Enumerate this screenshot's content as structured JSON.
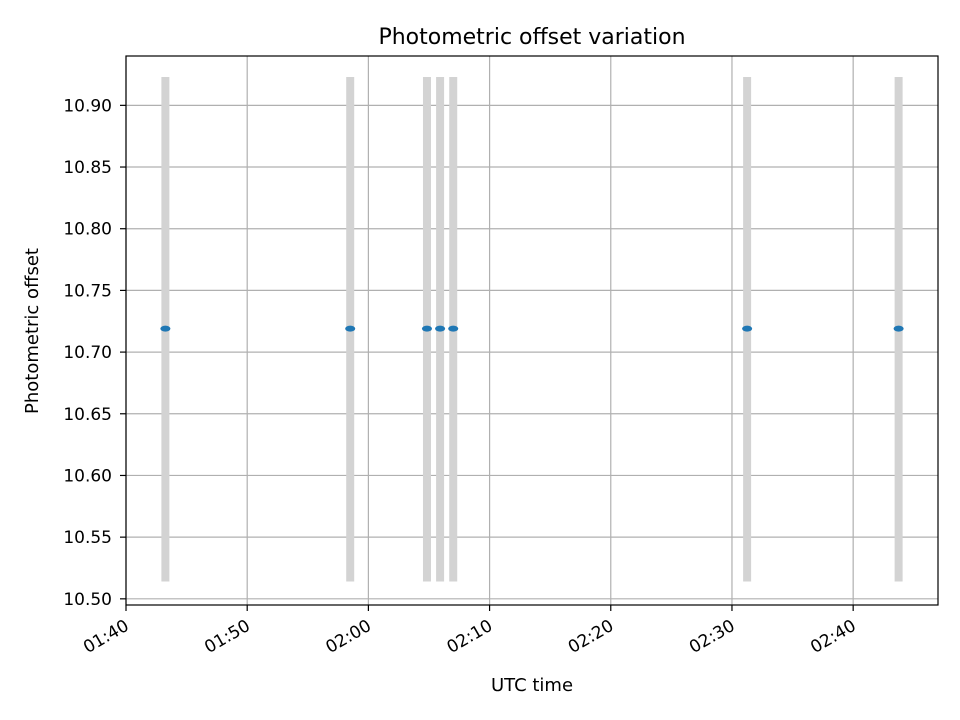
{
  "chart_data": {
    "type": "scatter",
    "title": "Photometric offset variation",
    "xlabel": "UTC time",
    "ylabel": "Photometric offset",
    "xlim": [
      "01:40",
      "02:47"
    ],
    "ylim": [
      10.495,
      10.94
    ],
    "x_ticks": [
      "01:40",
      "01:50",
      "02:00",
      "02:10",
      "02:20",
      "02:30",
      "02:40"
    ],
    "y_ticks": [
      "10.50",
      "10.55",
      "10.60",
      "10.65",
      "10.70",
      "10.75",
      "10.80",
      "10.85",
      "10.90"
    ],
    "grid": true,
    "series": [
      {
        "points": [
          {
            "t": "01:43:15",
            "y": 10.719,
            "err_low": 10.514,
            "err_high": 10.923
          },
          {
            "t": "01:58:30",
            "y": 10.719,
            "err_low": 10.514,
            "err_high": 10.923
          },
          {
            "t": "02:04:50",
            "y": 10.719,
            "err_low": 10.514,
            "err_high": 10.923
          },
          {
            "t": "02:05:55",
            "y": 10.719,
            "err_low": 10.514,
            "err_high": 10.923
          },
          {
            "t": "02:07:00",
            "y": 10.719,
            "err_low": 10.514,
            "err_high": 10.923
          },
          {
            "t": "02:31:15",
            "y": 10.719,
            "err_low": 10.514,
            "err_high": 10.923
          },
          {
            "t": "02:43:45",
            "y": 10.719,
            "err_low": 10.514,
            "err_high": 10.923
          }
        ]
      }
    ],
    "colors": {
      "point": "#1f77b4",
      "errorbar": "#d3d3d3",
      "grid": "#b0b0b0",
      "axes": "#000000"
    }
  }
}
